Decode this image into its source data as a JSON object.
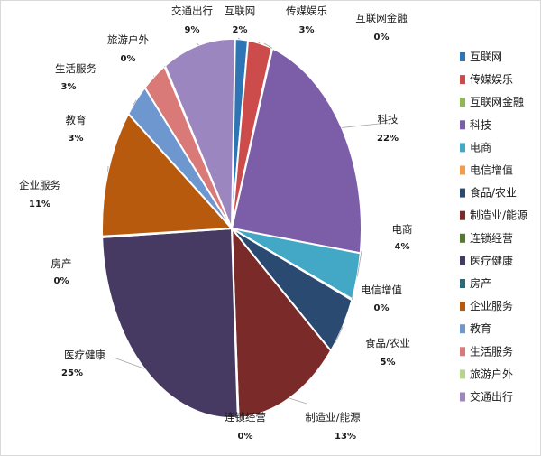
{
  "chart_data": {
    "type": "pie",
    "title": "",
    "legend_position": "right",
    "slices": [
      {
        "label": "互联网",
        "value": 2,
        "value_label": "2%",
        "color": "#2e75b6"
      },
      {
        "label": "传媒娱乐",
        "value": 3,
        "value_label": "3%",
        "color": "#cc4c4c"
      },
      {
        "label": "互联网金融",
        "value": 0,
        "value_label": "0%",
        "color": "#8fb950"
      },
      {
        "label": "科技",
        "value": 22,
        "value_label": "22%",
        "color": "#7b5ea7"
      },
      {
        "label": "电商",
        "value": 4,
        "value_label": "4%",
        "color": "#43a8c6"
      },
      {
        "label": "电信增值",
        "value": 0,
        "value_label": "0%",
        "color": "#f29b4a"
      },
      {
        "label": "食品/农业",
        "value": 5,
        "value_label": "5%",
        "color": "#2a4a72"
      },
      {
        "label": "制造业/能源",
        "value": 13,
        "value_label": "13%",
        "color": "#7b2a2a"
      },
      {
        "label": "连锁经营",
        "value": 0,
        "value_label": "0%",
        "color": "#55792f"
      },
      {
        "label": "医疗健康",
        "value": 25,
        "value_label": "25%",
        "color": "#473a62"
      },
      {
        "label": "房产",
        "value": 0,
        "value_label": "0%",
        "color": "#2a6b7a"
      },
      {
        "label": "企业服务",
        "value": 11,
        "value_label": "11%",
        "color": "#b85a0d"
      },
      {
        "label": "教育",
        "value": 3,
        "value_label": "3%",
        "color": "#6e97cf"
      },
      {
        "label": "生活服务",
        "value": 3,
        "value_label": "3%",
        "color": "#d97a78"
      },
      {
        "label": "旅游户外",
        "value": 0,
        "value_label": "0%",
        "color": "#b7d58a"
      },
      {
        "label": "交通出行",
        "value": 9,
        "value_label": "9%",
        "color": "#9c86bf"
      }
    ]
  }
}
